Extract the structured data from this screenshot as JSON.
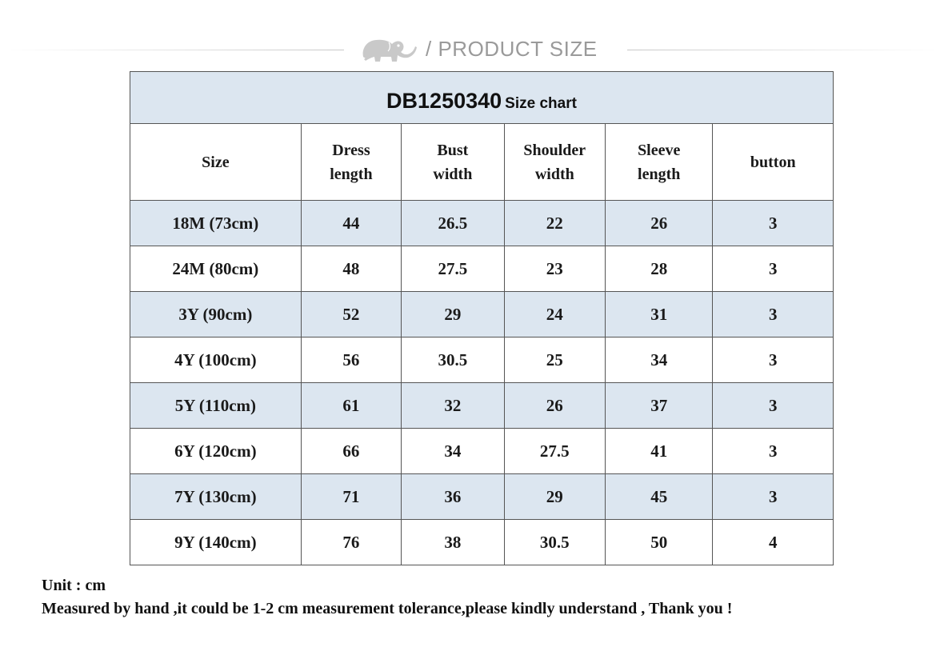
{
  "header": {
    "title": "/ PRODUCT SIZE",
    "logo_icon": "elephant-icon"
  },
  "table": {
    "code": "DB1250340",
    "caption": "Size chart",
    "columns": [
      "Size",
      "Dress\nlength",
      "Bust\nwidth",
      "Shoulder\nwidth",
      "Sleeve\nlength",
      "button"
    ],
    "rows": [
      [
        "18M (73cm)",
        "44",
        "26.5",
        "22",
        "26",
        "3"
      ],
      [
        "24M (80cm)",
        "48",
        "27.5",
        "23",
        "28",
        "3"
      ],
      [
        "3Y (90cm)",
        "52",
        "29",
        "24",
        "31",
        "3"
      ],
      [
        "4Y (100cm)",
        "56",
        "30.5",
        "25",
        "34",
        "3"
      ],
      [
        "5Y (110cm)",
        "61",
        "32",
        "26",
        "37",
        "3"
      ],
      [
        "6Y (120cm)",
        "66",
        "34",
        "27.5",
        "41",
        "3"
      ],
      [
        "7Y (130cm)",
        "71",
        "36",
        "29",
        "45",
        "3"
      ],
      [
        "9Y (140cm)",
        "76",
        "38",
        "30.5",
        "50",
        "4"
      ]
    ],
    "shade_color": "#dce6f0"
  },
  "footer": {
    "unit": "Unit : cm",
    "note": "Measured by hand ,it could be 1-2 cm measurement tolerance,please kindly understand , Thank you !"
  }
}
